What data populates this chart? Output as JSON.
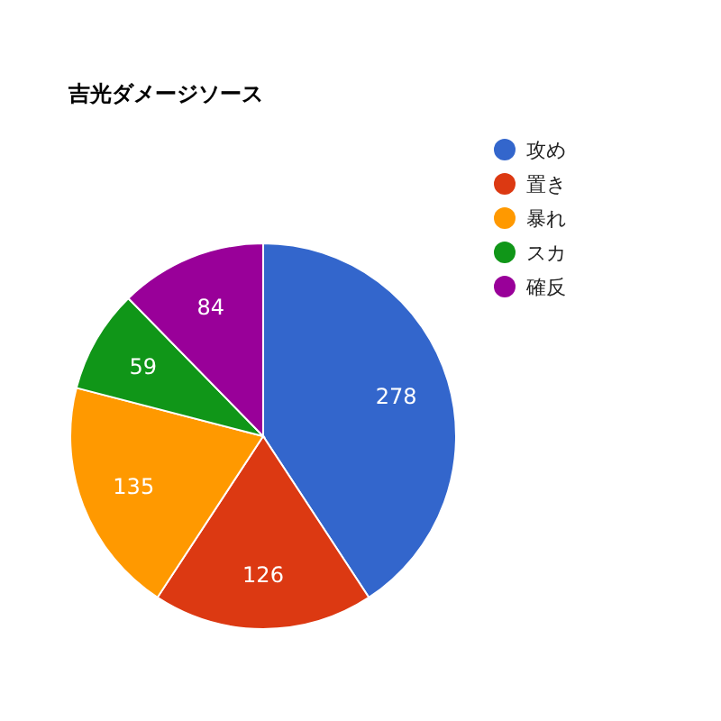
{
  "chart_data": {
    "type": "pie",
    "title": "吉光ダメージソース",
    "categories": [
      "攻め",
      "置き",
      "暴れ",
      "スカ",
      "確反"
    ],
    "values": [
      278,
      126,
      135,
      59,
      84
    ],
    "colors": [
      "#3366cc",
      "#dc3912",
      "#ff9900",
      "#109618",
      "#990099"
    ],
    "data_labels": true,
    "legend": "right"
  }
}
